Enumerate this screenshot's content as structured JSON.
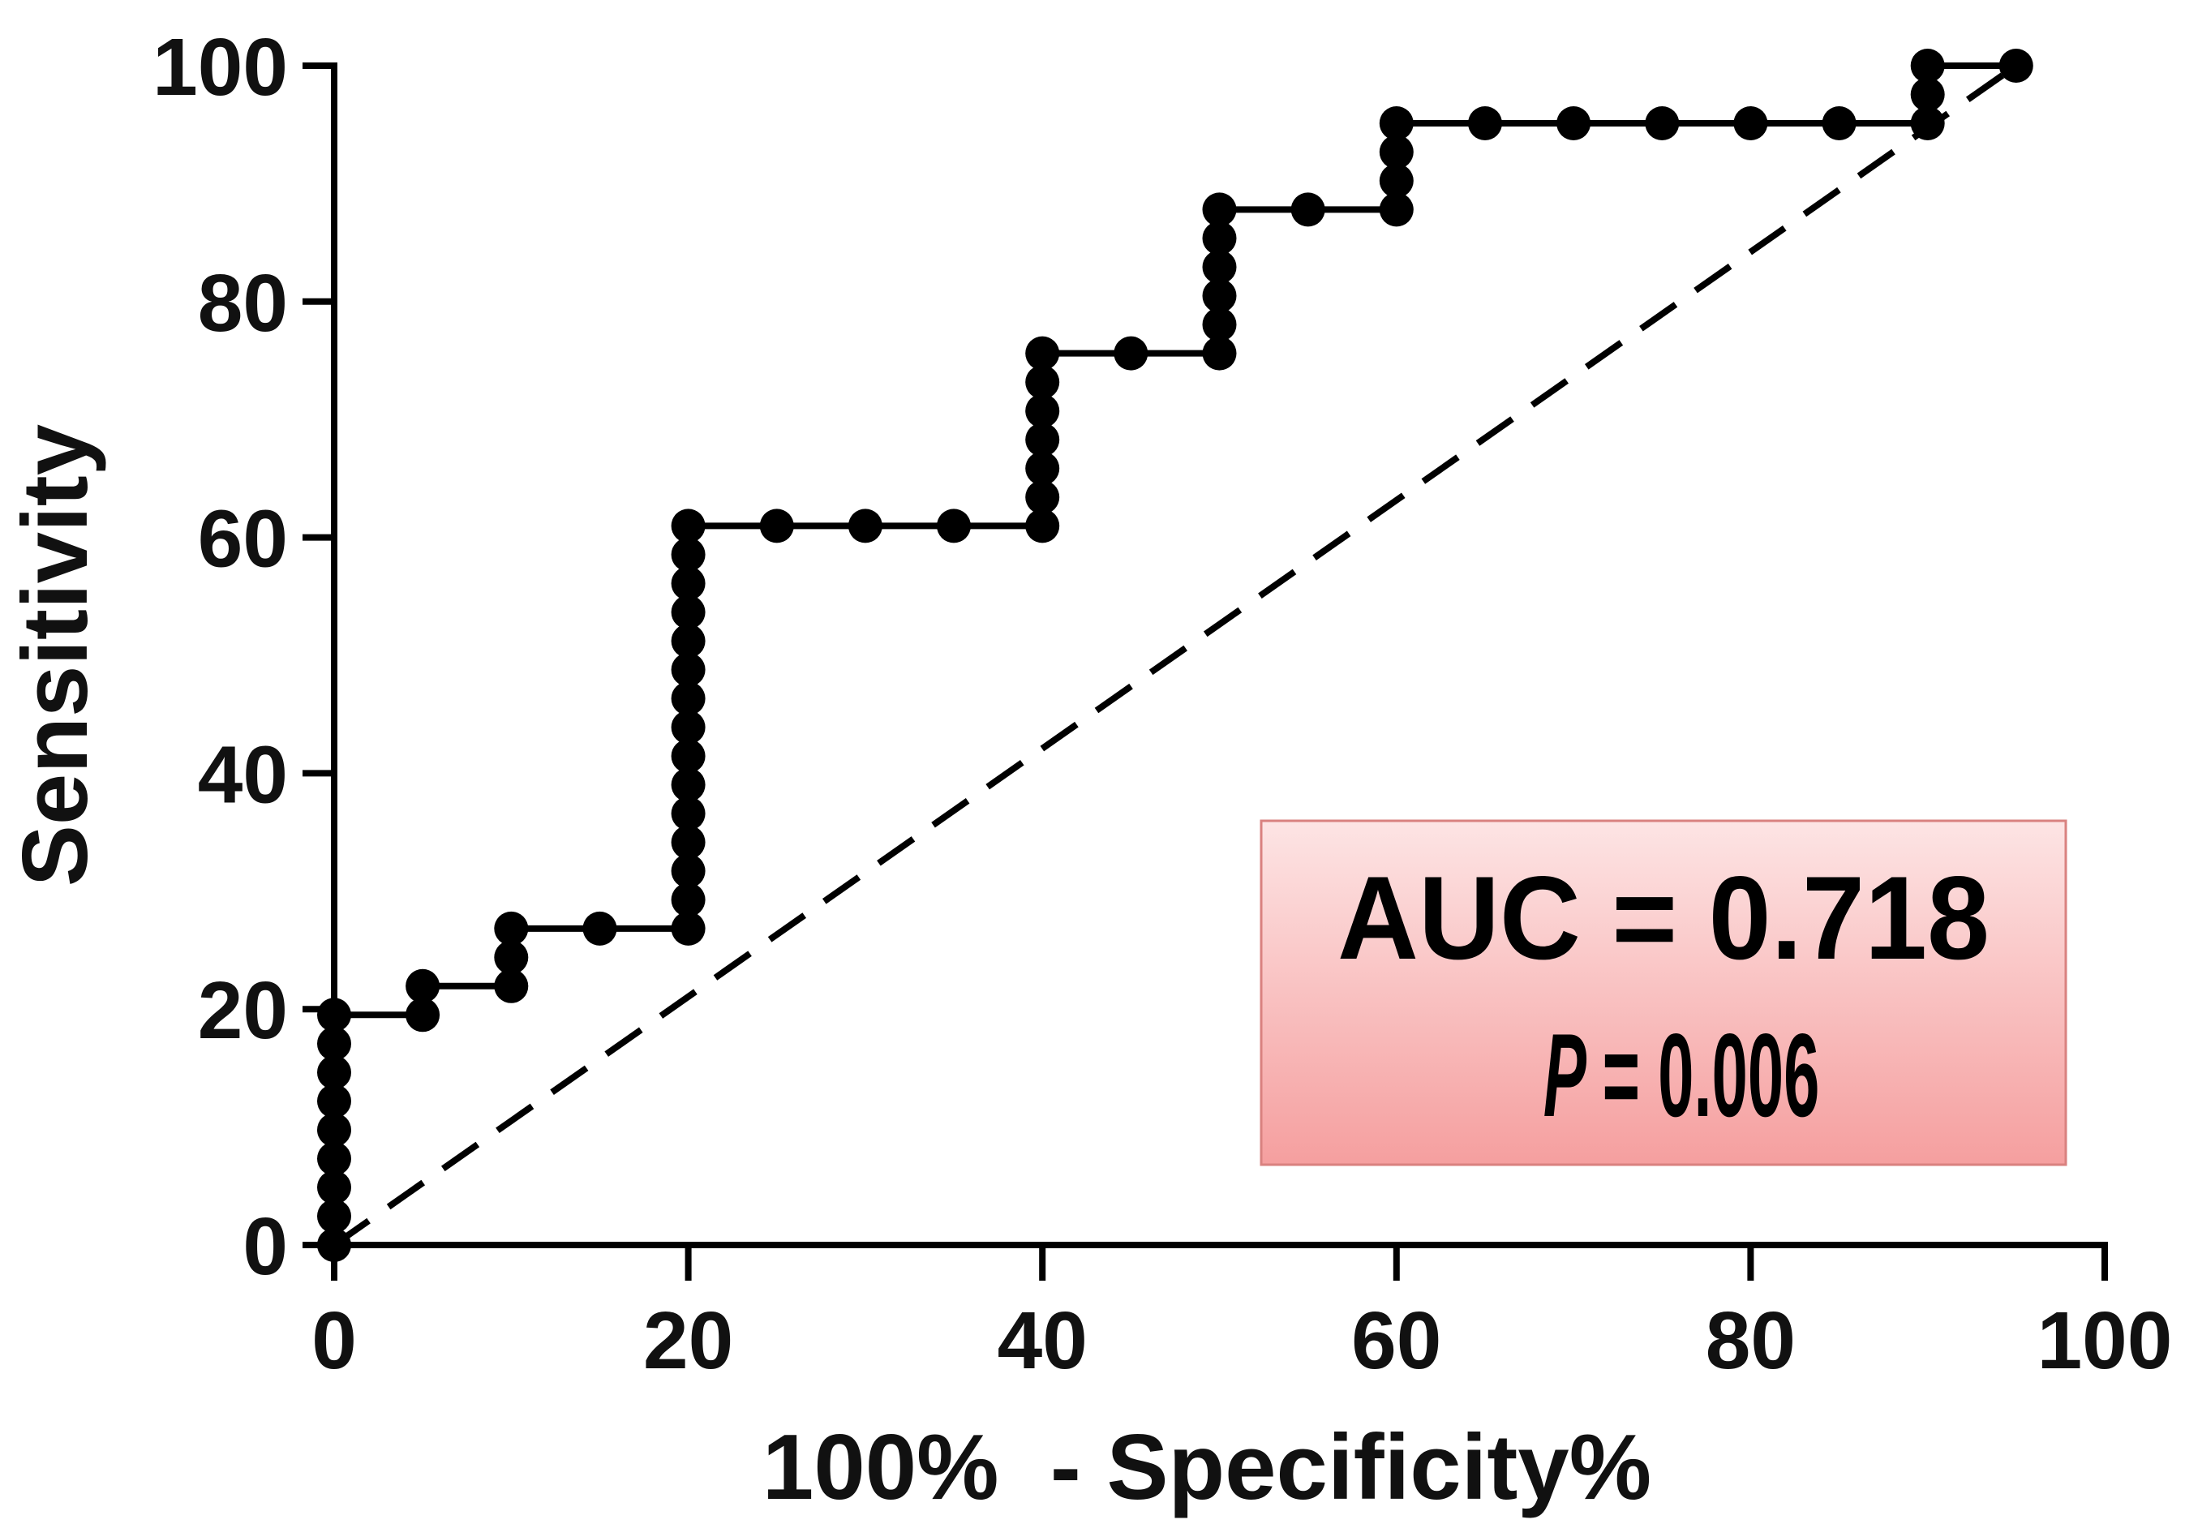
{
  "chart_data": {
    "type": "line",
    "xlabel": "100%  - Specificity%",
    "ylabel": "Sensitivity",
    "xlim": [
      0,
      100
    ],
    "ylim": [
      0,
      100
    ],
    "x_ticks": [
      "0",
      "20",
      "40",
      "60",
      "80",
      "100"
    ],
    "y_ticks": [
      "0",
      "20",
      "40",
      "60",
      "80",
      "100"
    ],
    "grid": false,
    "series": [
      {
        "color": "#000000",
        "x": [
          0,
          0,
          0,
          0,
          0,
          0,
          0,
          0,
          0,
          5,
          5,
          10,
          10,
          10,
          15,
          20,
          20,
          20,
          20,
          20,
          20,
          20,
          20,
          20,
          20,
          20,
          20,
          20,
          20,
          20,
          25,
          30,
          35,
          40,
          40,
          40,
          40,
          40,
          40,
          40,
          45,
          50,
          50,
          50,
          50,
          50,
          50,
          55,
          60,
          60,
          60,
          60,
          65,
          70,
          75,
          80,
          85,
          90,
          90,
          90,
          95
        ],
        "y": [
          0,
          2.44,
          4.88,
          7.32,
          9.76,
          12.2,
          14.63,
          17.07,
          19.51,
          19.51,
          21.95,
          21.95,
          24.39,
          26.83,
          26.83,
          26.83,
          29.27,
          31.71,
          34.15,
          36.59,
          39.02,
          41.46,
          43.9,
          46.34,
          48.78,
          51.22,
          53.66,
          56.1,
          58.54,
          60.98,
          60.98,
          60.98,
          60.98,
          60.98,
          63.41,
          65.85,
          68.29,
          70.73,
          73.17,
          75.61,
          75.61,
          75.61,
          78.05,
          80.49,
          82.93,
          85.37,
          87.8,
          87.8,
          87.8,
          90.24,
          92.68,
          95.12,
          95.12,
          95.12,
          95.12,
          95.12,
          95.12,
          95.12,
          97.56,
          100,
          100
        ]
      }
    ],
    "reference_line": {
      "x": [
        0,
        95
      ],
      "y": [
        0,
        100
      ],
      "dashed": true,
      "color": "#000000"
    },
    "annotation": {
      "auc_text": "AUC = 0.718",
      "p_symbol": "P",
      "p_text": "= 0.006",
      "box_color_top": "#fde4e4",
      "box_color_bottom": "#f59f9f",
      "box_border_color": "#d9817f"
    }
  }
}
